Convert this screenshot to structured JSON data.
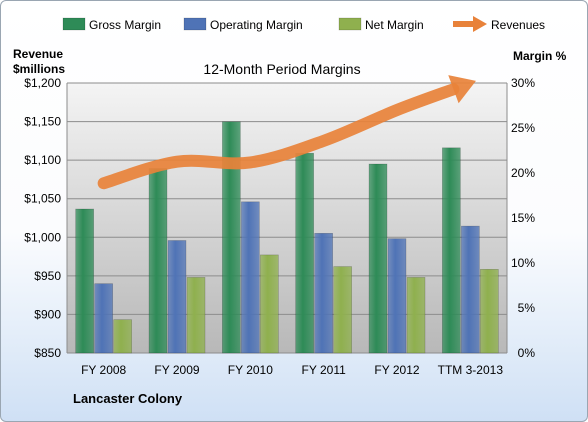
{
  "chart_data": {
    "type": "bar",
    "title": "12-Month Period Margins",
    "y_left_label": [
      "Revenue",
      "$millions"
    ],
    "y_right_label": "Margin %",
    "footer": "Lancaster Colony",
    "categories": [
      "FY 2008",
      "FY 2009",
      "FY 2010",
      "FY 2011",
      "FY 2012",
      "TTM 3-2013"
    ],
    "y_left": {
      "min": 850,
      "max": 1200,
      "step": 50,
      "ticks": [
        "$850",
        "$900",
        "$950",
        "$1,000",
        "$1,050",
        "$1,100",
        "$1,150",
        "$1,200"
      ]
    },
    "y_right": {
      "min": 0,
      "max": 30,
      "step": 5,
      "ticks": [
        "0%",
        "5%",
        "10%",
        "15%",
        "20%",
        "25%",
        "30%"
      ]
    },
    "grid": true,
    "legend_position": "top",
    "series": [
      {
        "name": "Gross Margin",
        "axis": "right",
        "type": "bar",
        "color": "#2e8b57",
        "values": [
          16.0,
          20.5,
          25.7,
          22.2,
          21.0,
          22.8
        ]
      },
      {
        "name": "Operating Margin",
        "axis": "right",
        "type": "bar",
        "color": "#4f73b6",
        "values": [
          7.7,
          12.5,
          16.8,
          13.3,
          12.7,
          14.1
        ]
      },
      {
        "name": "Net Margin",
        "axis": "right",
        "type": "bar",
        "color": "#8fb04e",
        "values": [
          3.7,
          8.4,
          10.9,
          9.6,
          8.4,
          9.3
        ]
      },
      {
        "name": "Revenues",
        "axis": "left",
        "type": "line",
        "color": "#e8823a",
        "values": [
          1070,
          1098,
          1097,
          1125,
          1165,
          1200
        ]
      }
    ]
  }
}
